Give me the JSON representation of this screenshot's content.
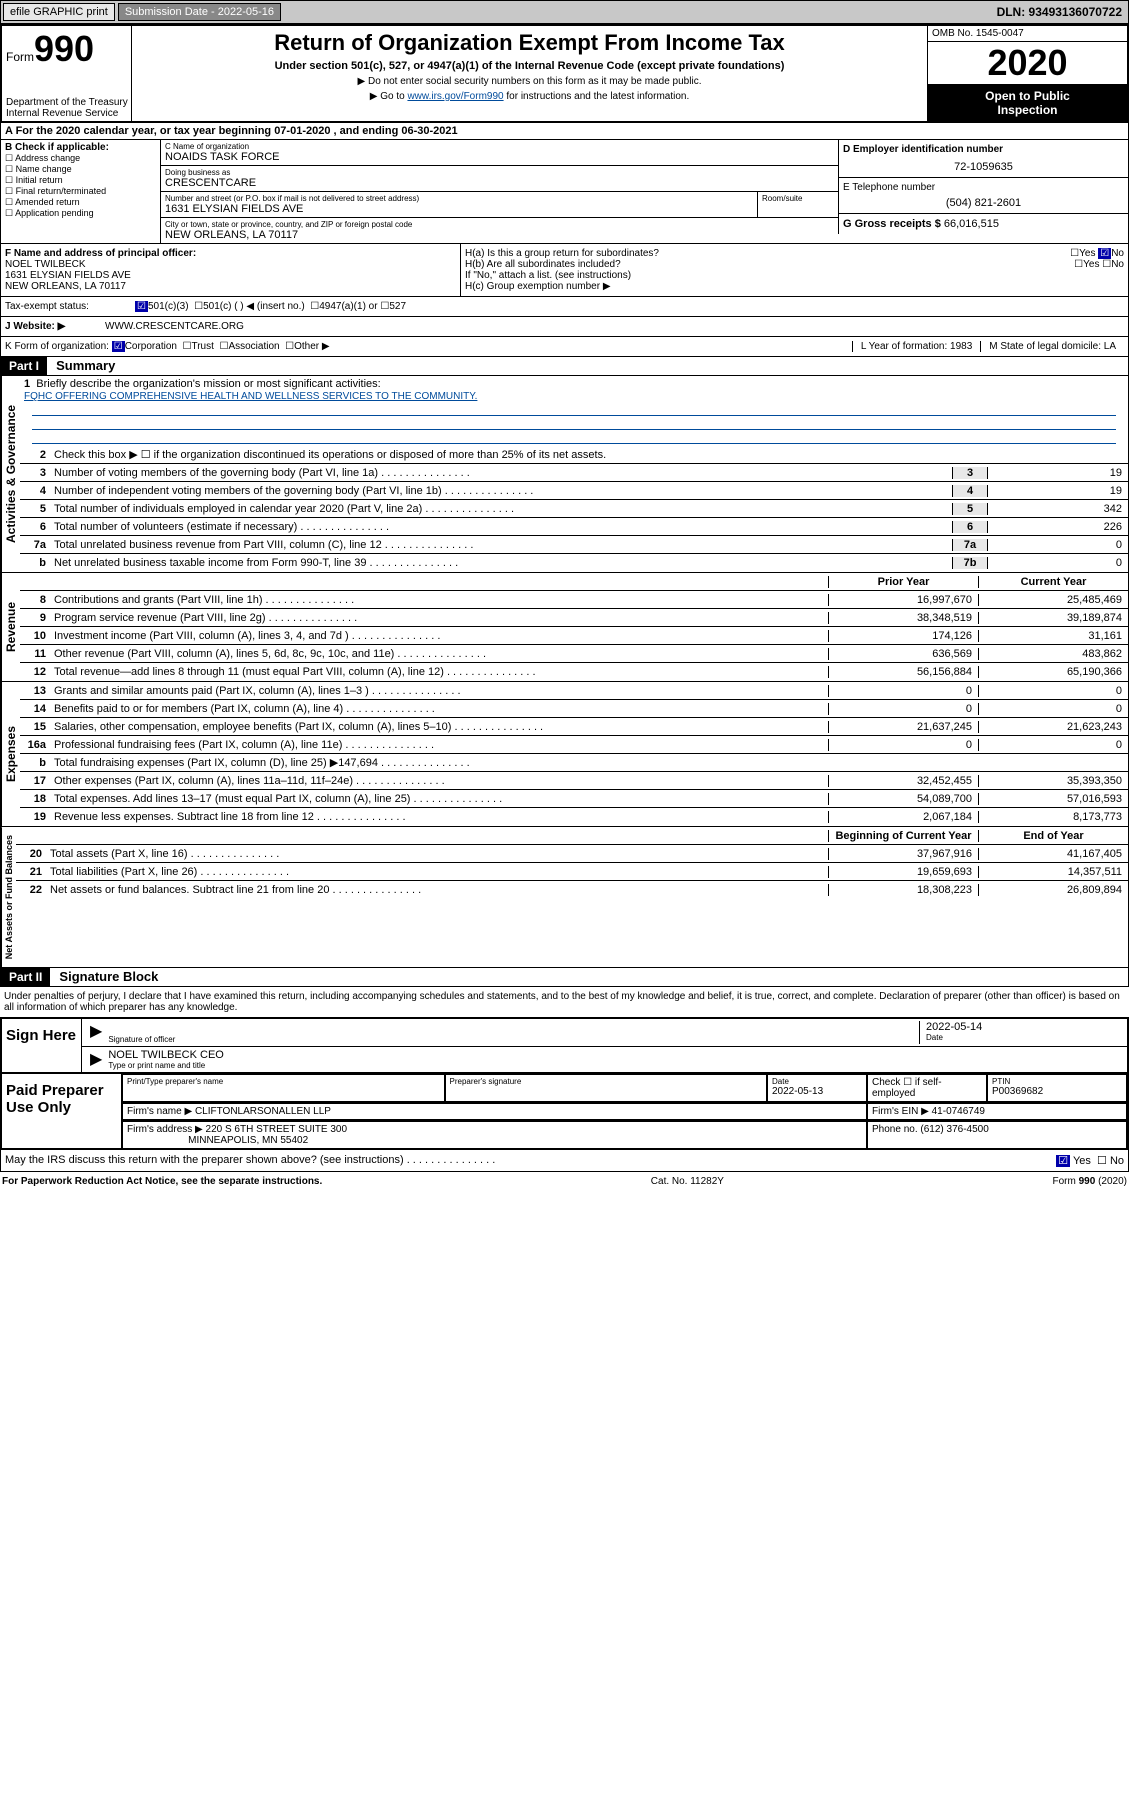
{
  "topbar": {
    "efile": "efile GRAPHIC print",
    "subdate_label": "Submission Date - 2022-05-16",
    "dln": "DLN: 93493136070722"
  },
  "header": {
    "form_word": "Form",
    "form_no": "990",
    "dept1": "Department of the Treasury",
    "dept2": "Internal Revenue Service",
    "title": "Return of Organization Exempt From Income Tax",
    "sub": "Under section 501(c), 527, or 4947(a)(1) of the Internal Revenue Code (except private foundations)",
    "note1": "▶ Do not enter social security numbers on this form as it may be made public.",
    "note2_pre": "▶ Go to ",
    "note2_link": "www.irs.gov/Form990",
    "note2_post": " for instructions and the latest information.",
    "omb": "OMB No. 1545-0047",
    "year": "2020",
    "open1": "Open to Public",
    "open2": "Inspection"
  },
  "period": "A  For the 2020 calendar year, or tax year beginning 07-01-2020    , and ending 06-30-2021",
  "sectionB": {
    "hdr": "B Check if applicable:",
    "opts": [
      "Address change",
      "Name change",
      "Initial return",
      "Final return/terminated",
      "Amended return",
      "Application pending"
    ]
  },
  "sectionC": {
    "name_label": "C Name of organization",
    "name": "NOAIDS TASK FORCE",
    "dba_label": "Doing business as",
    "dba": "CRESCENTCARE",
    "addr_label": "Number and street (or P.O. box if mail is not delivered to street address)",
    "room_label": "Room/suite",
    "addr": "1631 ELYSIAN FIELDS AVE",
    "city_label": "City or town, state or province, country, and ZIP or foreign postal code",
    "city": "NEW ORLEANS, LA  70117"
  },
  "sectionD": {
    "label": "D Employer identification number",
    "val": "72-1059635"
  },
  "sectionE": {
    "label": "E Telephone number",
    "val": "(504) 821-2601"
  },
  "sectionG": {
    "label": "G Gross receipts $",
    "val": "66,016,515"
  },
  "sectionF": {
    "label": "F  Name and address of principal officer:",
    "name": "NOEL TWILBECK",
    "addr1": "1631 ELYSIAN FIELDS AVE",
    "addr2": "NEW ORLEANS, LA  70117"
  },
  "sectionH": {
    "a": "H(a)  Is this a group return for subordinates?",
    "b": "H(b)  Are all subordinates included?",
    "bnote": "If \"No,\" attach a list. (see instructions)",
    "c": "H(c)  Group exemption number ▶",
    "yes": "Yes",
    "no": "No"
  },
  "exempt": {
    "label": "Tax-exempt status:",
    "o1": "501(c)(3)",
    "o2": "501(c) (  ) ◀ (insert no.)",
    "o3": "4947(a)(1) or",
    "o4": "527"
  },
  "website": {
    "label": "J   Website: ▶",
    "val": "WWW.CRESCENTCARE.ORG"
  },
  "korg": {
    "k": "K Form of organization:",
    "corp": "Corporation",
    "trust": "Trust",
    "assoc": "Association",
    "other": "Other ▶",
    "l": "L Year of formation: 1983",
    "m": "M State of legal domicile: LA"
  },
  "part1": {
    "hdr": "Part I",
    "title": "Summary"
  },
  "governance": {
    "label": "Activities & Governance",
    "l1": "Briefly describe the organization's mission or most significant activities:",
    "l1v": "FQHC OFFERING COMPREHENSIVE HEALTH AND WELLNESS SERVICES TO THE COMMUNITY.",
    "l2": "Check this box ▶ ☐  if the organization discontinued its operations or disposed of more than 25% of its net assets.",
    "l3": "Number of voting members of the governing body (Part VI, line 1a)",
    "l4": "Number of independent voting members of the governing body (Part VI, line 1b)",
    "l5": "Total number of individuals employed in calendar year 2020 (Part V, line 2a)",
    "l6": "Total number of volunteers (estimate if necessary)",
    "l7a": "Total unrelated business revenue from Part VIII, column (C), line 12",
    "l7b": "Net unrelated business taxable income from Form 990-T, line 39",
    "v3": "19",
    "v4": "19",
    "v5": "342",
    "v6": "226",
    "v7a": "0",
    "v7b": "0"
  },
  "revenue": {
    "label": "Revenue",
    "hdr_prior": "Prior Year",
    "hdr_curr": "Current Year",
    "rows": [
      {
        "n": "8",
        "t": "Contributions and grants (Part VIII, line 1h)",
        "p": "16,997,670",
        "c": "25,485,469"
      },
      {
        "n": "9",
        "t": "Program service revenue (Part VIII, line 2g)",
        "p": "38,348,519",
        "c": "39,189,874"
      },
      {
        "n": "10",
        "t": "Investment income (Part VIII, column (A), lines 3, 4, and 7d )",
        "p": "174,126",
        "c": "31,161"
      },
      {
        "n": "11",
        "t": "Other revenue (Part VIII, column (A), lines 5, 6d, 8c, 9c, 10c, and 11e)",
        "p": "636,569",
        "c": "483,862"
      },
      {
        "n": "12",
        "t": "Total revenue—add lines 8 through 11 (must equal Part VIII, column (A), line 12)",
        "p": "56,156,884",
        "c": "65,190,366"
      }
    ]
  },
  "expenses": {
    "label": "Expenses",
    "rows": [
      {
        "n": "13",
        "t": "Grants and similar amounts paid (Part IX, column (A), lines 1–3 )",
        "p": "0",
        "c": "0"
      },
      {
        "n": "14",
        "t": "Benefits paid to or for members (Part IX, column (A), line 4)",
        "p": "0",
        "c": "0"
      },
      {
        "n": "15",
        "t": "Salaries, other compensation, employee benefits (Part IX, column (A), lines 5–10)",
        "p": "21,637,245",
        "c": "21,623,243"
      },
      {
        "n": "16a",
        "t": "Professional fundraising fees (Part IX, column (A), line 11e)",
        "p": "0",
        "c": "0"
      },
      {
        "n": "b",
        "t": "Total fundraising expenses (Part IX, column (D), line 25) ▶147,694",
        "p": "",
        "c": ""
      },
      {
        "n": "17",
        "t": "Other expenses (Part IX, column (A), lines 11a–11d, 11f–24e)",
        "p": "32,452,455",
        "c": "35,393,350"
      },
      {
        "n": "18",
        "t": "Total expenses. Add lines 13–17 (must equal Part IX, column (A), line 25)",
        "p": "54,089,700",
        "c": "57,016,593"
      },
      {
        "n": "19",
        "t": "Revenue less expenses. Subtract line 18 from line 12",
        "p": "2,067,184",
        "c": "8,173,773"
      }
    ]
  },
  "netassets": {
    "label": "Net Assets or Fund Balances",
    "hdr_begin": "Beginning of Current Year",
    "hdr_end": "End of Year",
    "rows": [
      {
        "n": "20",
        "t": "Total assets (Part X, line 16)",
        "p": "37,967,916",
        "c": "41,167,405"
      },
      {
        "n": "21",
        "t": "Total liabilities (Part X, line 26)",
        "p": "19,659,693",
        "c": "14,357,511"
      },
      {
        "n": "22",
        "t": "Net assets or fund balances. Subtract line 21 from line 20",
        "p": "18,308,223",
        "c": "26,809,894"
      }
    ]
  },
  "part2": {
    "hdr": "Part II",
    "title": "Signature Block"
  },
  "sig": {
    "intro": "Under penalties of perjury, I declare that I have examined this return, including accompanying schedules and statements, and to the best of my knowledge and belief, it is true, correct, and complete. Declaration of preparer (other than officer) is based on all information of which preparer has any knowledge.",
    "sign_here": "Sign Here",
    "sig_officer": "Signature of officer",
    "date": "Date",
    "date_val": "2022-05-14",
    "name": "NOEL TWILBECK CEO",
    "name_caption": "Type or print name and title"
  },
  "prep": {
    "label": "Paid Preparer Use Only",
    "c_print": "Print/Type preparer's name",
    "c_sig": "Preparer's signature",
    "c_date": "Date",
    "date_val": "2022-05-13",
    "c_check": "Check ☐ if self-employed",
    "c_ptin": "PTIN",
    "ptin_val": "P00369682",
    "firm_label": "Firm's name    ▶",
    "firm": "CLIFTONLARSONALLEN LLP",
    "ein_label": "Firm's EIN ▶",
    "ein": "41-0746749",
    "addr_label": "Firm's address ▶",
    "addr1": "220 S 6TH STREET SUITE 300",
    "addr2": "MINNEAPOLIS, MN  55402",
    "phone_label": "Phone no.",
    "phone": "(612) 376-4500"
  },
  "discuss": {
    "q": "May the IRS discuss this return with the preparer shown above? (see instructions)",
    "yes": "Yes",
    "no": "No"
  },
  "footer": {
    "left": "For Paperwork Reduction Act Notice, see the separate instructions.",
    "mid": "Cat. No. 11282Y",
    "right": "Form 990 (2020)"
  }
}
